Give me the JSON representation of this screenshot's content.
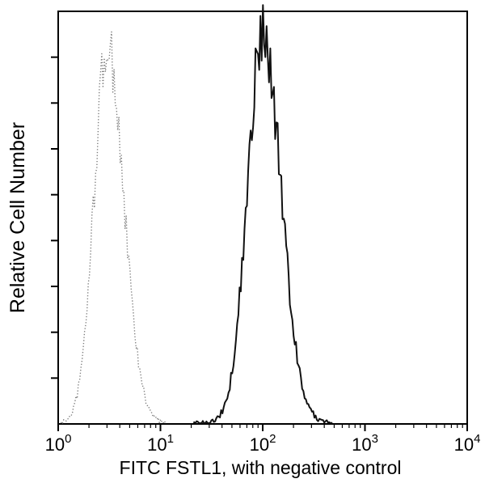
{
  "figure": {
    "background": "#ffffff",
    "frame_color": "#000000"
  },
  "chart_data": {
    "type": "histogram",
    "title": "",
    "xlabel": "FITC FSTL1, with negative control",
    "ylabel": "Relative Cell Number",
    "x_scale": "log10",
    "x_range": [
      1,
      10000
    ],
    "x_major_ticks": [
      1,
      10,
      100,
      1000,
      10000
    ],
    "x_tick_exponents": [
      0,
      1,
      2,
      3,
      4
    ],
    "y_axis": {
      "labeled": false,
      "tick_count": 8
    },
    "grid": false,
    "legend": false,
    "series": [
      {
        "name": "negative-control",
        "label": "negative control",
        "line_style": "dotted",
        "color": "#7d7d7d",
        "peak_x": 3,
        "log10_mean": 0.48,
        "log10_sigma_left": 0.13,
        "log10_sigma_right": 0.16,
        "rel_height": 0.94,
        "log10_range": [
          0.03,
          1.05
        ]
      },
      {
        "name": "fitc-fstl1",
        "label": "FITC FSTL1",
        "line_style": "solid",
        "color": "#111111",
        "peak_x": 100,
        "log10_mean": 2.0,
        "log10_sigma_left": 0.15,
        "log10_sigma_right": 0.18,
        "rel_height": 0.97,
        "log10_range": [
          1.33,
          2.68
        ]
      }
    ]
  }
}
